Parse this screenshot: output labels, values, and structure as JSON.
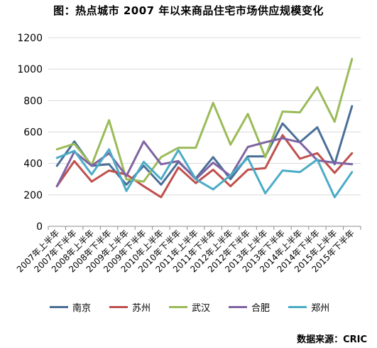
{
  "title": "图：热点城市 2007 年以来商品住宅市场供应规模变化",
  "source": "数据来源：CRIC",
  "chart_data": {
    "type": "line",
    "categories": [
      "2007年上半年",
      "2007年下半年",
      "2008年上半年",
      "2008年下半年",
      "2009年上半年",
      "2009年下半年",
      "2010年上半年",
      "2010年下半年",
      "2011年上半年",
      "2011年下半年",
      "2012年上半年",
      "2012年下半年",
      "2013年上半年",
      "2013年下半年",
      "2014年上半年",
      "2014年下半年",
      "2015年上半年",
      "2015年下半年"
    ],
    "ylim": [
      0,
      1200
    ],
    "yticks": [
      0,
      200,
      400,
      600,
      800,
      1000,
      1200
    ],
    "grid": "horizontal",
    "legend_position": "bottom",
    "series": [
      {
        "name": "南京",
        "color": "#4a6f97",
        "values": [
          385,
          540,
          385,
          395,
          265,
          385,
          265,
          410,
          305,
          440,
          300,
          445,
          445,
          655,
          535,
          630,
          395,
          765
        ]
      },
      {
        "name": "苏州",
        "color": "#c0504d",
        "values": [
          255,
          415,
          285,
          355,
          330,
          255,
          185,
          375,
          275,
          360,
          255,
          360,
          370,
          580,
          430,
          465,
          340,
          465
        ]
      },
      {
        "name": "武汉",
        "color": "#9bbb59",
        "values": [
          490,
          525,
          390,
          675,
          300,
          285,
          440,
          500,
          500,
          785,
          520,
          715,
          440,
          730,
          725,
          885,
          665,
          1065
        ]
      },
      {
        "name": "合肥",
        "color": "#8064a2",
        "values": [
          255,
          475,
          385,
          465,
          320,
          540,
          395,
          415,
          300,
          405,
          320,
          505,
          535,
          560,
          535,
          420,
          405,
          395
        ]
      },
      {
        "name": "郑州",
        "color": "#4bacc6",
        "values": [
          435,
          480,
          330,
          490,
          225,
          410,
          300,
          485,
          300,
          235,
          325,
          435,
          210,
          355,
          345,
          425,
          185,
          345
        ]
      }
    ]
  }
}
